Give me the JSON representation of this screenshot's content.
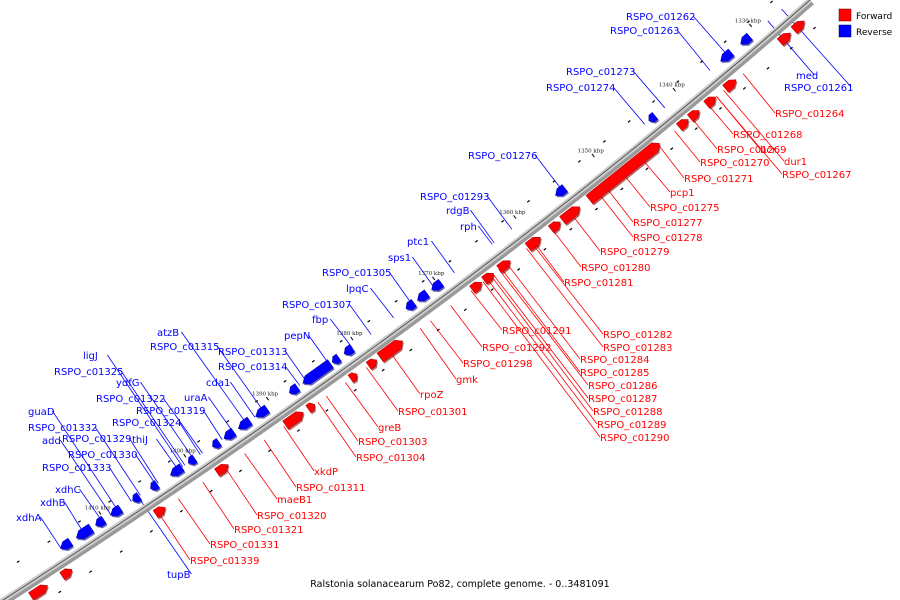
{
  "caption": "Ralstonia solanacearum Po82, complete genome. - 0..3481091",
  "legend": {
    "forward": {
      "label": "Forward",
      "color": "#ff0000"
    },
    "reverse": {
      "label": "Reverse",
      "color": "#0000ff"
    }
  },
  "ticks": [
    "1330 kbp",
    "1340 kbp",
    "1350 kbp",
    "1360 kbp",
    "1370 kbp",
    "1380 kbp",
    "1390 kbp",
    "1400 kbp",
    "1410 kbp"
  ],
  "forward_labels": [
    "RSPO_c01264",
    "RSPO_c01268",
    "bcr",
    "RSPO_c01269",
    "dur1",
    "RSPO_c01270",
    "RSPO_c01267",
    "RSPO_c01271",
    "pcp1",
    "RSPO_c01275",
    "RSPO_c01277",
    "RSPO_c01278",
    "RSPO_c01279",
    "RSPO_c01280",
    "RSPO_c01281",
    "RSPO_c01282",
    "RSPO_c01291",
    "RSPO_c01283",
    "RSPO_c01292",
    "RSPO_c01284",
    "RSPO_c01298",
    "RSPO_c01285",
    "gmk",
    "RSPO_c01286",
    "rpoZ",
    "RSPO_c01287",
    "RSPO_c01301",
    "RSPO_c01288",
    "greB",
    "RSPO_c01289",
    "RSPO_c01303",
    "RSPO_c01290",
    "RSPO_c01304",
    "xkdP",
    "RSPO_c01311",
    "maeB1",
    "RSPO_c01320",
    "RSPO_c01321",
    "RSPO_c01331",
    "RSPO_c01339"
  ],
  "reverse_labels": [
    "RSPO_c01262",
    "RSPO_c01263",
    "med",
    "RSPO_c01261",
    "RSPO_c01273",
    "RSPO_c01274",
    "RSPO_c01276",
    "RSPO_c01293",
    "rdgB",
    "rph",
    "ptc1",
    "sps1",
    "RSPO_c01305",
    "lpqC",
    "RSPO_c01307",
    "fbp",
    "pepN",
    "RSPO_c01313",
    "atzB",
    "RSPO_c01315",
    "RSPO_c01314",
    "ligJ",
    "cda1",
    "RSPO_c01325",
    "ydfG",
    "uraA",
    "RSPO_c01322",
    "RSPO_c01319",
    "RSPO_c01324",
    "guaD",
    "RSPO_c01332",
    "thiJ",
    "add",
    "RSPO_c01329",
    "RSPO_c01330",
    "RSPO_c01333",
    "xdhC",
    "xdhB",
    "xdhA",
    "tupB"
  ]
}
